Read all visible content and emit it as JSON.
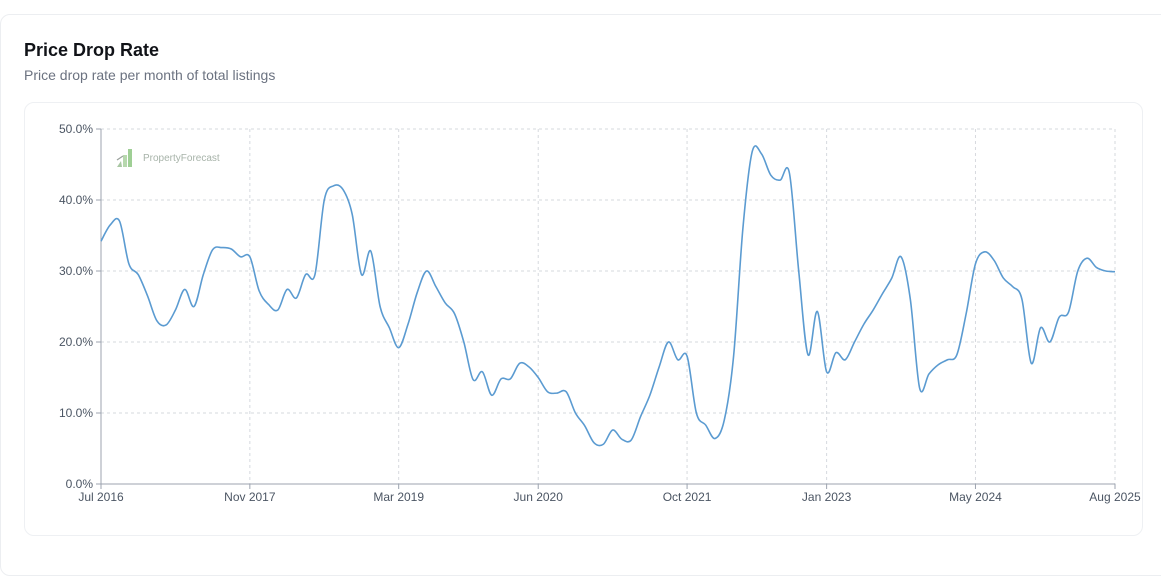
{
  "header": {
    "title": "Price Drop Rate",
    "subtitle": "Price drop rate per month of total listings"
  },
  "watermark": {
    "text": "PropertyForecast"
  },
  "colors": {
    "line": "#5b9bd1",
    "grid": "#d6d9de",
    "axis": "#9ca3af"
  },
  "chart_data": {
    "type": "line",
    "title": "Price Drop Rate",
    "subtitle": "Price drop rate per month of total listings",
    "xlabel": "",
    "ylabel": "",
    "x_ticks": [
      "Jul 2016",
      "Nov 2017",
      "Mar 2019",
      "Jun 2020",
      "Oct 2021",
      "Jan 2023",
      "May 2024",
      "Aug 2025"
    ],
    "y_ticks": [
      "0.0%",
      "10.0%",
      "20.0%",
      "30.0%",
      "40.0%",
      "50.0%"
    ],
    "ylim": [
      0,
      50
    ],
    "grid": true,
    "series": [
      {
        "x": [
          "2016-07",
          "2016-08",
          "2016-09",
          "2016-10",
          "2016-11",
          "2016-12",
          "2017-01",
          "2017-02",
          "2017-03",
          "2017-04",
          "2017-05",
          "2017-06",
          "2017-07",
          "2017-08",
          "2017-09",
          "2017-10",
          "2017-11",
          "2017-12",
          "2018-01",
          "2018-02",
          "2018-03",
          "2018-04",
          "2018-05",
          "2018-06",
          "2018-07",
          "2018-08",
          "2018-09",
          "2018-10",
          "2018-11",
          "2018-12",
          "2019-01",
          "2019-02",
          "2019-03",
          "2019-04",
          "2019-05",
          "2019-06",
          "2019-07",
          "2019-08",
          "2019-09",
          "2019-10",
          "2019-11",
          "2019-12",
          "2020-01",
          "2020-02",
          "2020-03",
          "2020-04",
          "2020-05",
          "2020-06",
          "2020-07",
          "2020-08",
          "2020-09",
          "2020-10",
          "2020-11",
          "2020-12",
          "2021-01",
          "2021-02",
          "2021-03",
          "2021-04",
          "2021-05",
          "2021-06",
          "2021-07",
          "2021-08",
          "2021-09",
          "2021-10",
          "2021-11",
          "2021-12",
          "2022-01",
          "2022-02",
          "2022-03",
          "2022-04",
          "2022-05",
          "2022-06",
          "2022-07",
          "2022-08",
          "2022-09",
          "2022-10",
          "2022-11",
          "2022-12",
          "2023-01",
          "2023-02",
          "2023-03",
          "2023-04",
          "2023-05",
          "2023-06",
          "2023-07",
          "2023-08",
          "2023-09",
          "2023-10",
          "2023-11",
          "2023-12",
          "2024-01",
          "2024-02",
          "2024-03",
          "2024-04",
          "2024-05",
          "2024-06",
          "2024-07",
          "2024-08",
          "2024-09",
          "2024-10",
          "2024-11",
          "2024-12",
          "2025-01",
          "2025-02",
          "2025-03",
          "2025-04",
          "2025-05",
          "2025-06",
          "2025-07",
          "2025-08"
        ],
        "values": [
          34.2,
          36.5,
          37,
          31,
          29.5,
          26.5,
          23,
          22.4,
          24.5,
          27.4,
          25,
          29.5,
          33,
          33.3,
          33.1,
          32,
          32,
          27.2,
          25.3,
          24.5,
          27.4,
          26.2,
          29.5,
          29.5,
          40,
          42,
          41.5,
          38,
          29.5,
          32.8,
          25,
          22,
          19.2,
          22.5,
          27,
          30,
          27.8,
          25.5,
          24,
          20,
          14.7,
          15.8,
          12.5,
          14.8,
          14.8,
          17,
          16.5,
          15,
          13,
          12.8,
          13,
          10,
          8.2,
          5.8,
          5.6,
          7.6,
          6.3,
          6.2,
          9.5,
          12.5,
          16.5,
          20,
          17.5,
          18,
          10,
          8.3,
          6.4,
          9,
          18,
          36,
          46.8,
          46.5,
          43.5,
          42.8,
          43.8,
          30,
          18.2,
          24.3,
          15.8,
          18.5,
          17.5,
          20,
          22.5,
          24.5,
          26.8,
          29,
          32,
          26,
          13.5,
          15.5,
          16.8,
          17.5,
          18.2,
          24,
          31,
          32.7,
          31.5,
          29,
          27.8,
          26,
          17,
          22,
          20,
          23.5,
          24.2,
          30,
          31.8,
          30.5,
          30,
          29.9
        ]
      }
    ]
  }
}
